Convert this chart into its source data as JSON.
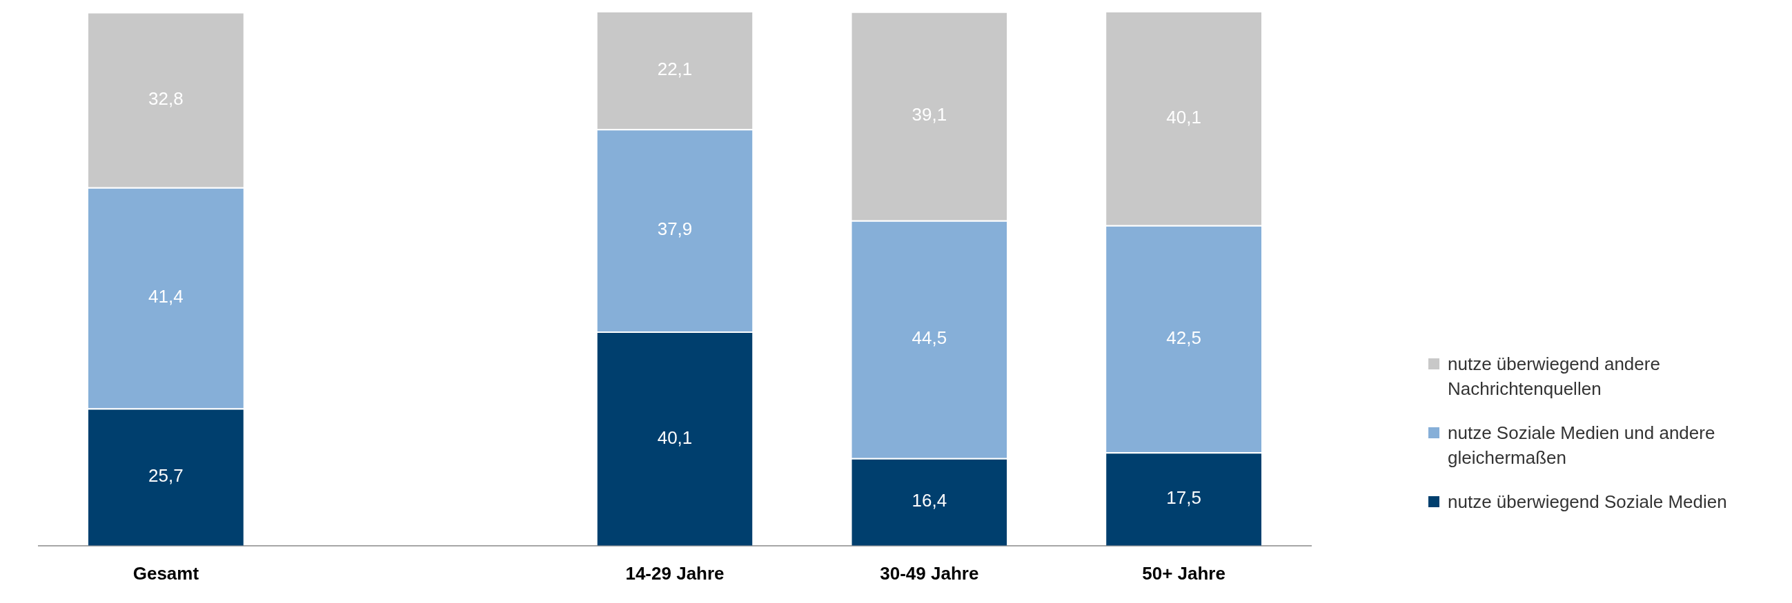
{
  "chart_data": {
    "type": "bar",
    "stacked": true,
    "categories": [
      "Gesamt",
      null,
      "14-29 Jahre",
      "30-49 Jahre",
      "50+ Jahre"
    ],
    "series": [
      {
        "name": "nutze überwiegend Soziale Medien",
        "color": "#003f6e",
        "values": [
          25.7,
          null,
          40.1,
          16.4,
          17.5
        ],
        "value_labels": [
          "25,7",
          null,
          "40,1",
          "16,4",
          "17,5"
        ]
      },
      {
        "name": "nutze Soziale Medien und andere gleichermaßen",
        "color": "#86afd8",
        "values": [
          41.4,
          null,
          37.9,
          44.5,
          42.5
        ],
        "value_labels": [
          "41,4",
          null,
          "37,9",
          "44,5",
          "42,5"
        ]
      },
      {
        "name": "nutze überwiegend andere Nachrichtenquellen",
        "color": "#c8c8c8",
        "values": [
          32.8,
          null,
          22.1,
          39.1,
          40.1
        ],
        "value_labels": [
          "32,8",
          null,
          "22,1",
          "39,1",
          "40,1"
        ]
      }
    ],
    "grid": false,
    "legend": "right"
  }
}
